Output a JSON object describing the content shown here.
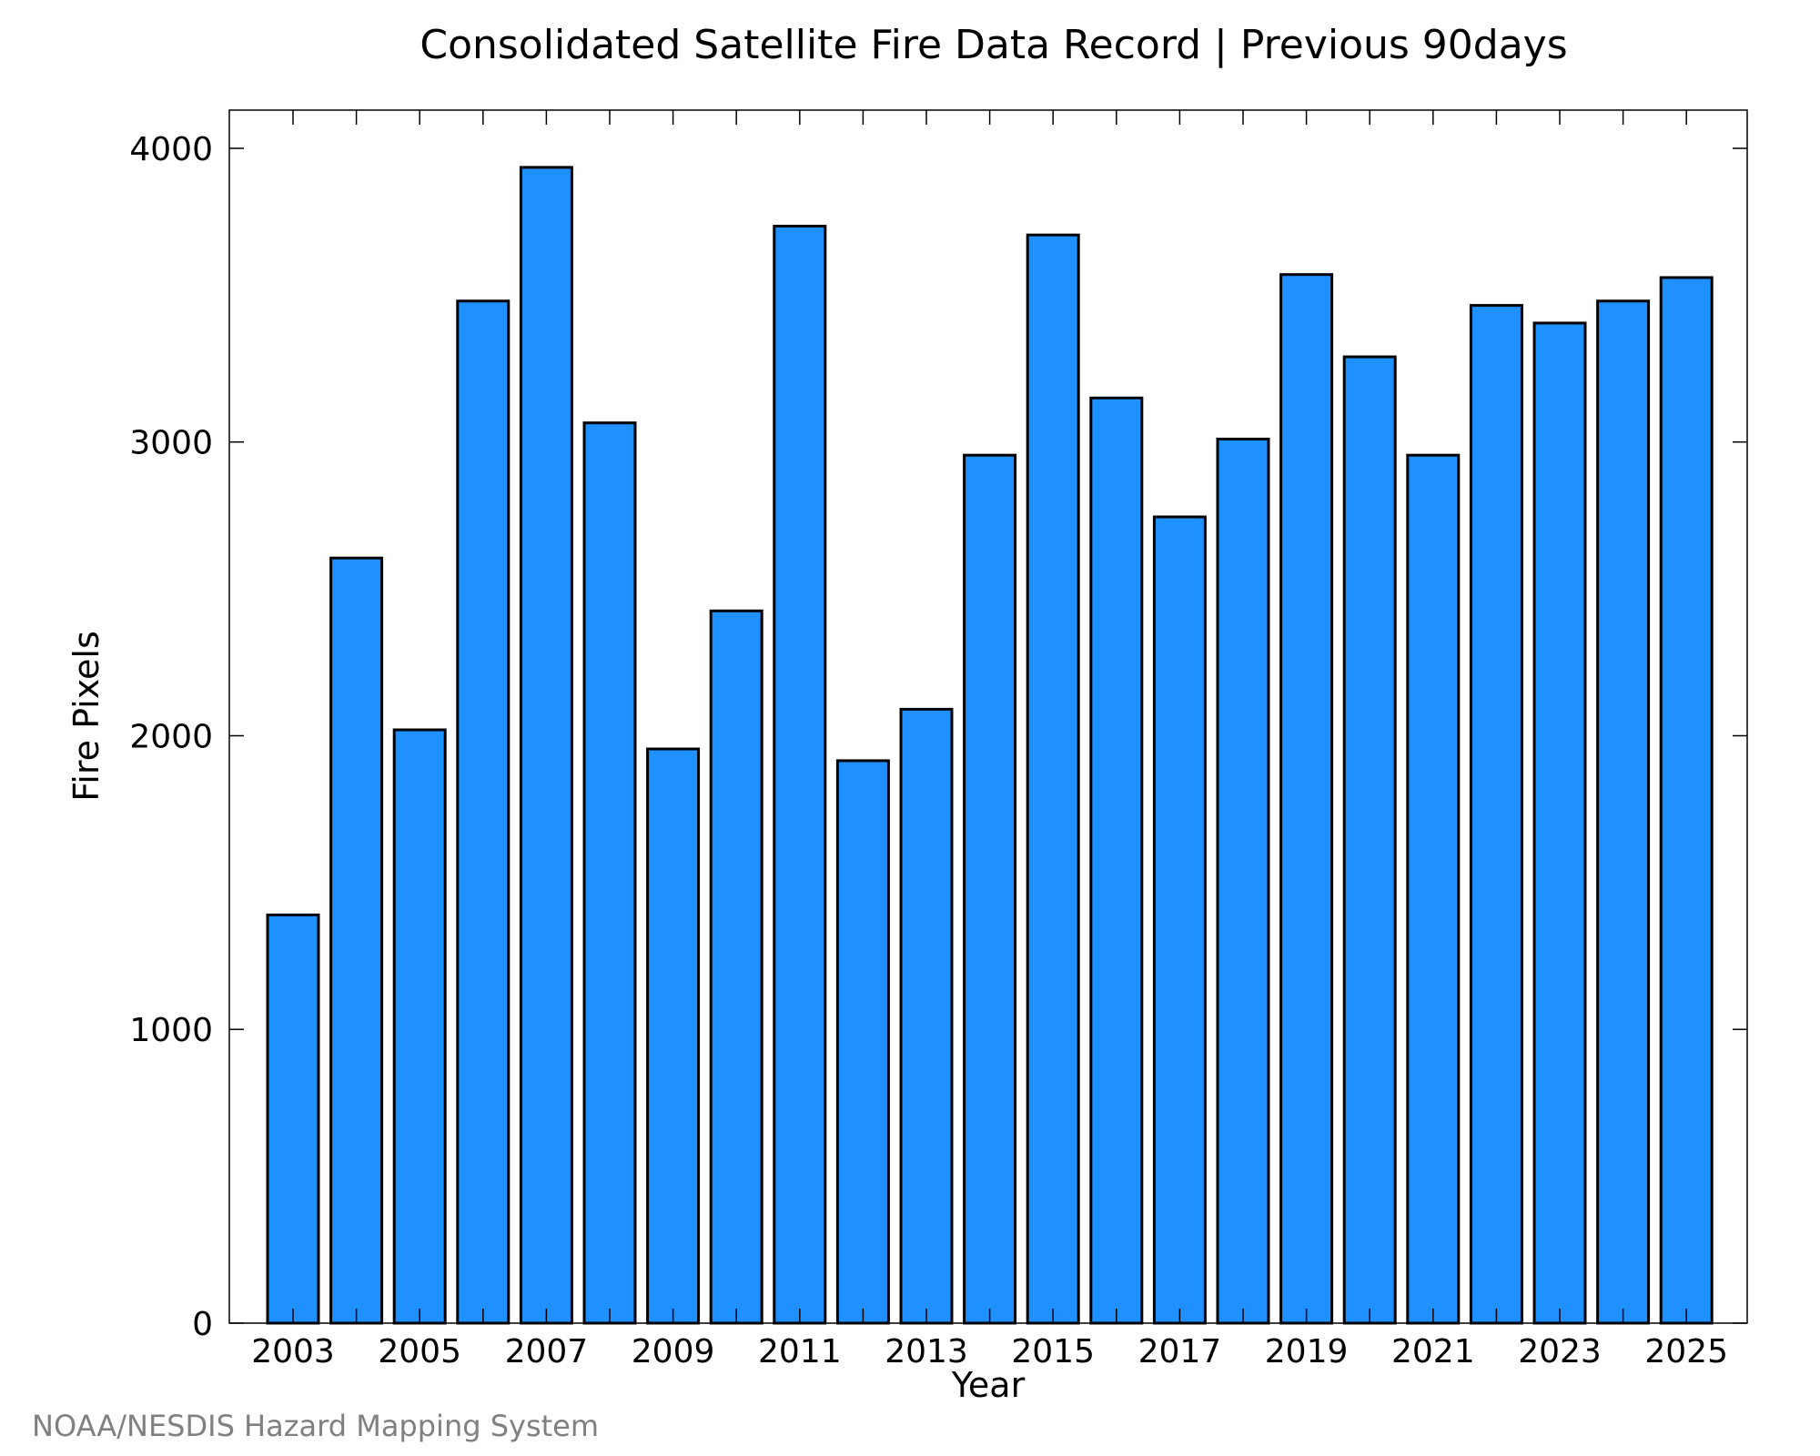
{
  "chart_data": {
    "type": "bar",
    "title": "Consolidated Satellite Fire Data Record | Previous 90days",
    "xlabel": "Year",
    "ylabel": "Fire Pixels",
    "categories": [
      "2003",
      "2004",
      "2005",
      "2006",
      "2007",
      "2008",
      "2009",
      "2010",
      "2011",
      "2012",
      "2013",
      "2014",
      "2015",
      "2016",
      "2017",
      "2018",
      "2019",
      "2020",
      "2021",
      "2022",
      "2023",
      "2024",
      "2025"
    ],
    "values": [
      1390,
      2605,
      2020,
      3480,
      3935,
      3065,
      1955,
      2425,
      3735,
      1915,
      2090,
      2955,
      3705,
      3150,
      2745,
      3010,
      3570,
      3290,
      2955,
      3465,
      3405,
      3480,
      3560
    ],
    "x_tick_labels": [
      "2003",
      "2005",
      "2007",
      "2009",
      "2011",
      "2013",
      "2015",
      "2017",
      "2019",
      "2021",
      "2023",
      "2025"
    ],
    "y_tick_labels": [
      "0",
      "1000",
      "2000",
      "3000",
      "4000"
    ],
    "ylim": [
      0,
      4130
    ],
    "bar_color": "#1e90ff",
    "grid": false,
    "legend": "none"
  },
  "credit": "NOAA/NESDIS Hazard Mapping System"
}
